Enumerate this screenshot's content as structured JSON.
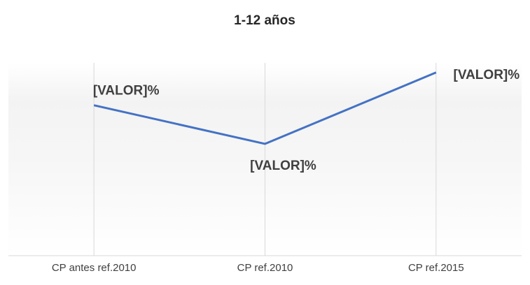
{
  "chart_data": {
    "type": "line",
    "title": "1-12 años",
    "categories": [
      "CP antes ref.2010",
      "CP ref.2010",
      "CP ref.2015"
    ],
    "series": [
      {
        "name": "1-12 años",
        "color": "#4472c4",
        "values": [
          78,
          58,
          95
        ],
        "value_labels": [
          "[VALOR]%",
          "[VALOR]%",
          "[VALOR]%"
        ]
      }
    ],
    "ylim": [
      0,
      100
    ]
  }
}
